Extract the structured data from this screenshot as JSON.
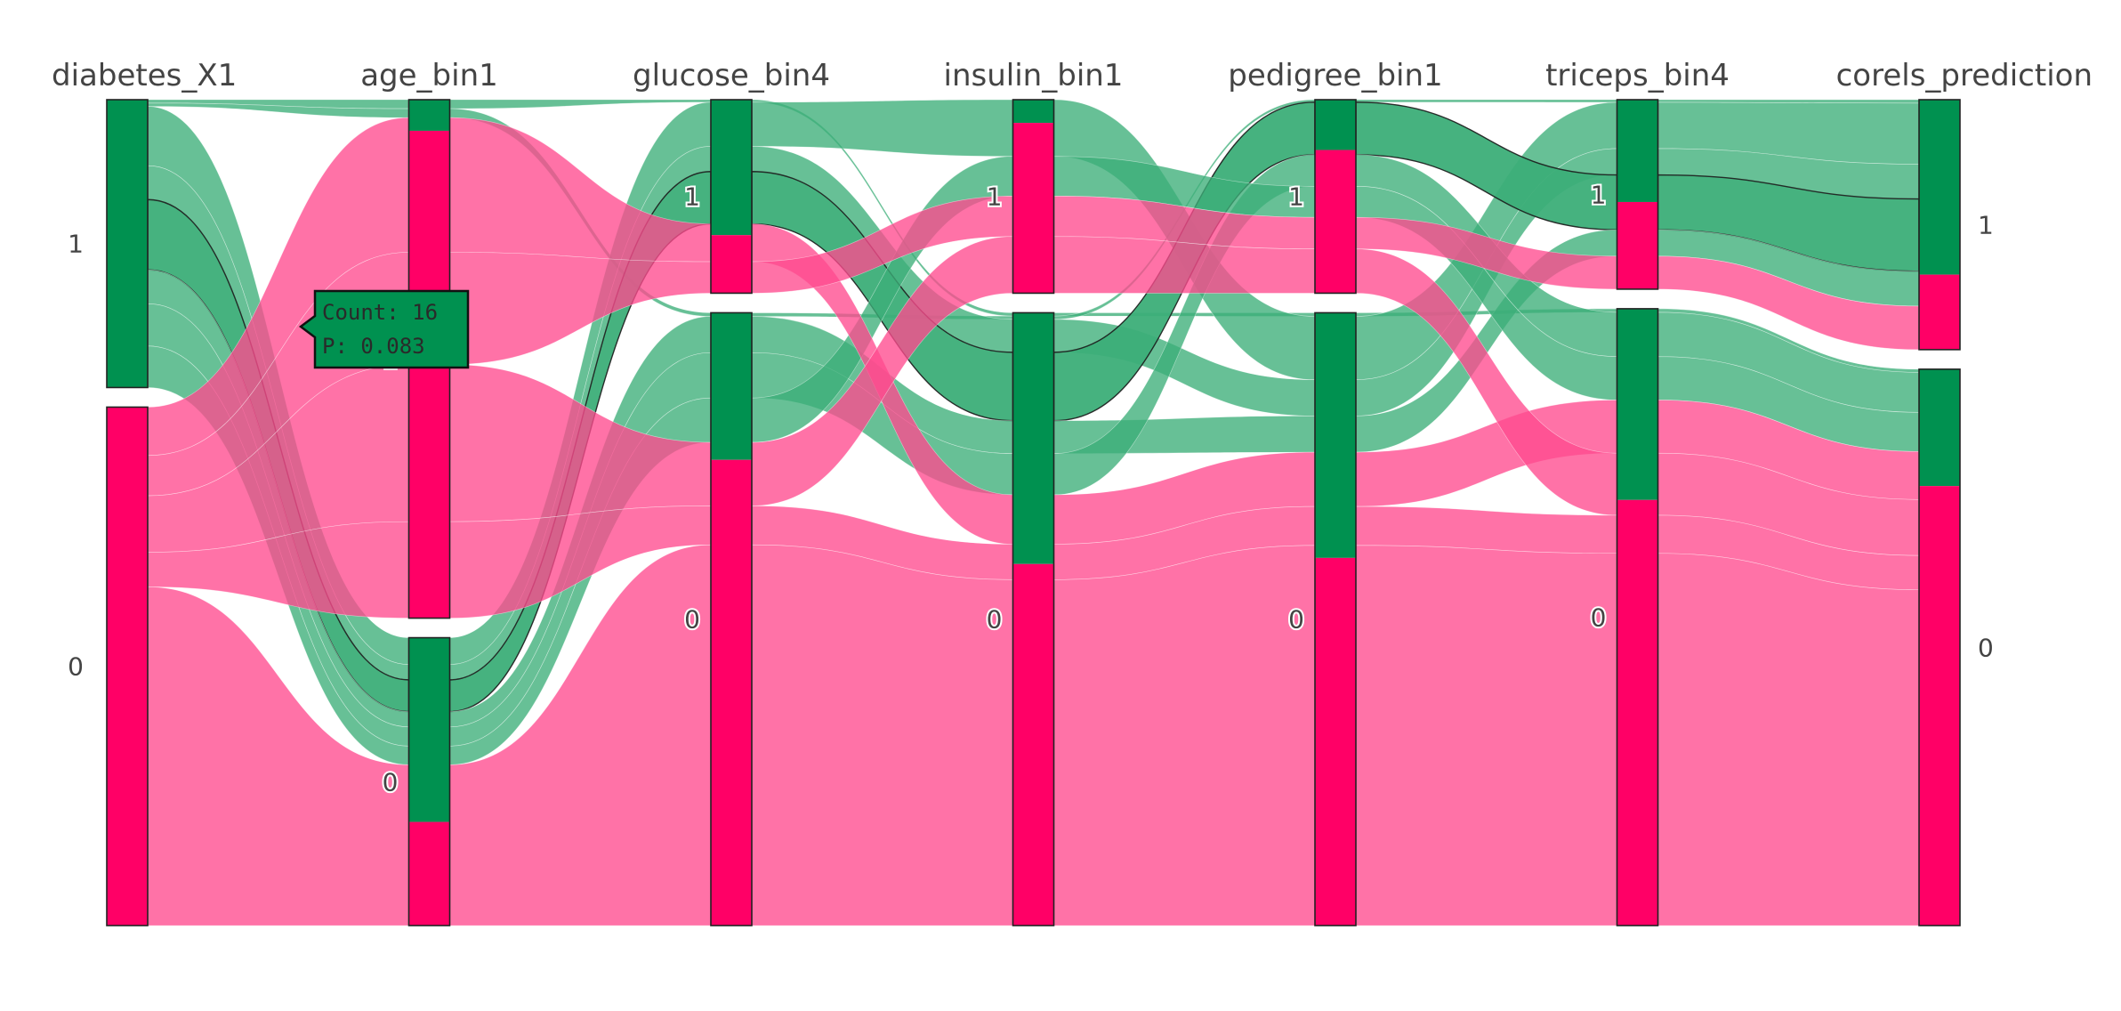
{
  "chart_data": {
    "type": "parallel_categories",
    "title": "",
    "colors": {
      "positive": "#009150",
      "negative": "#ff0066",
      "positive_band": "#3cae78",
      "negative_band": "#ff4a8e"
    },
    "dimensions": [
      {
        "name": "diabetes_X1",
        "categories": [
          {
            "label": "1",
            "fraction": 0.357
          },
          {
            "label": "0",
            "fraction": 0.643
          }
        ],
        "labels_shown": true
      },
      {
        "name": "age_bin1",
        "categories": [
          {
            "label": "1",
            "fraction": 0.643
          },
          {
            "label": "0",
            "fraction": 0.357
          }
        ],
        "labels_shown": true
      },
      {
        "name": "glucose_bin4",
        "categories": [
          {
            "label": "1",
            "fraction": 0.24
          },
          {
            "label": "0",
            "fraction": 0.76
          }
        ],
        "labels_shown": true
      },
      {
        "name": "insulin_bin1",
        "categories": [
          {
            "label": "1",
            "fraction": 0.24
          },
          {
            "label": "0",
            "fraction": 0.76
          }
        ],
        "labels_shown": true
      },
      {
        "name": "pedigree_bin1",
        "categories": [
          {
            "label": "1",
            "fraction": 0.24
          },
          {
            "label": "0",
            "fraction": 0.76
          }
        ],
        "labels_shown": true
      },
      {
        "name": "triceps_bin4",
        "categories": [
          {
            "label": "1",
            "fraction": 0.235
          },
          {
            "label": "0",
            "fraction": 0.765
          }
        ],
        "labels_shown": true
      },
      {
        "name": "corels_prediction",
        "categories": [
          {
            "label": "1",
            "fraction": 0.31
          },
          {
            "label": "0",
            "fraction": 0.69
          }
        ],
        "labels_shown": true
      }
    ],
    "node_color_split": [
      [
        {
          "green": 1.0,
          "pink": 0.0
        },
        {
          "green": 0.0,
          "pink": 1.0
        }
      ],
      [
        {
          "green": 0.06,
          "pink": 0.94
        },
        {
          "green": 0.64,
          "pink": 0.36
        }
      ],
      [
        {
          "green": 0.7,
          "pink": 0.3
        },
        {
          "green": 0.24,
          "pink": 0.76
        }
      ],
      [
        {
          "green": 0.12,
          "pink": 0.88
        },
        {
          "green": 0.41,
          "pink": 0.59
        }
      ],
      [
        {
          "green": 0.26,
          "pink": 0.74
        },
        {
          "green": 0.4,
          "pink": 0.6
        }
      ],
      [
        {
          "green": 0.54,
          "pink": 0.46
        },
        {
          "green": 0.31,
          "pink": 0.69
        }
      ],
      [
        {
          "green": 0.7,
          "pink": 0.3
        },
        {
          "green": 0.21,
          "pink": 0.79
        }
      ]
    ],
    "ribbons": [
      {
        "color": "positive",
        "path": [
          0,
          0,
          0,
          1,
          1,
          1,
          1
        ],
        "weight": 0.004
      },
      {
        "color": "positive",
        "path": [
          0,
          0,
          1,
          1,
          0,
          0,
          0
        ],
        "weight": 0.004
      },
      {
        "color": "positive",
        "path": [
          0,
          1,
          0,
          0,
          1,
          0,
          0
        ],
        "weight": 0.07
      },
      {
        "color": "positive",
        "path": [
          0,
          1,
          0,
          1,
          1,
          0,
          0
        ],
        "weight": 0.04
      },
      {
        "color": "positive",
        "path": [
          0,
          1,
          0,
          1,
          0,
          0,
          0
        ],
        "weight": 0.083,
        "highlight": true
      },
      {
        "color": "positive",
        "path": [
          0,
          1,
          1,
          1,
          1,
          0,
          0
        ],
        "weight": 0.04
      },
      {
        "color": "positive",
        "path": [
          0,
          1,
          1,
          1,
          0,
          1,
          1
        ],
        "weight": 0.05
      },
      {
        "color": "positive",
        "path": [
          0,
          1,
          1,
          0,
          0,
          1,
          1
        ],
        "weight": 0.049
      },
      {
        "color": "negative",
        "path": [
          1,
          0,
          0,
          1,
          1,
          1,
          1
        ],
        "weight": 0.06
      },
      {
        "color": "negative",
        "path": [
          1,
          0,
          0,
          0,
          0,
          0,
          0
        ],
        "weight": 0.05
      },
      {
        "color": "negative",
        "path": [
          1,
          0,
          1,
          0,
          0,
          1,
          1
        ],
        "weight": 0.07
      },
      {
        "color": "negative",
        "path": [
          1,
          0,
          1,
          1,
          1,
          1,
          1
        ],
        "weight": 0.043
      },
      {
        "color": "negative",
        "path": [
          1,
          1,
          1,
          1,
          1,
          1,
          1
        ],
        "weight": 0.42
      }
    ],
    "tooltip": {
      "count_label": "Count:",
      "count": 16,
      "p_label": "P:",
      "p": 0.083
    }
  }
}
